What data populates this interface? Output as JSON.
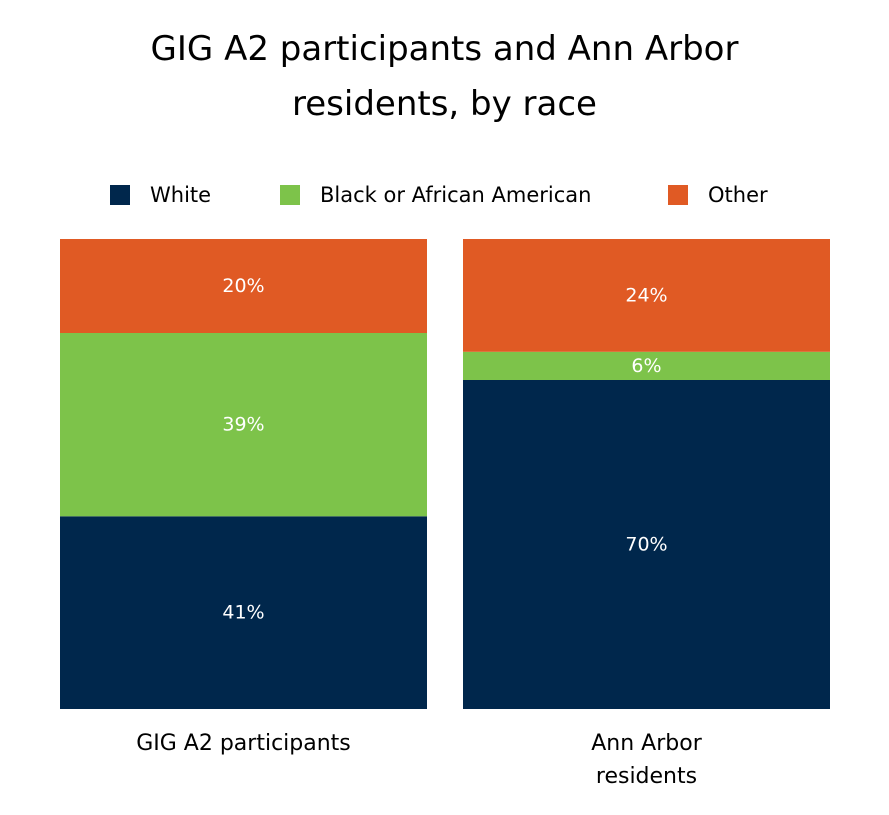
{
  "chart_data": {
    "type": "bar",
    "stacked": true,
    "title": "GIG A2 participants and Ann Arbor residents, by race",
    "categories": [
      "GIG A2 participants",
      "Ann Arbor residents"
    ],
    "series": [
      {
        "name": "White",
        "color": "#00274c",
        "values": [
          41,
          70
        ],
        "labels": [
          "41%",
          "70%"
        ]
      },
      {
        "name": "Black or African American",
        "color": "#7dc34a",
        "values": [
          39,
          6
        ],
        "labels": [
          "39%",
          "6%"
        ]
      },
      {
        "name": "Other",
        "color": "#e05a24",
        "values": [
          20,
          24
        ],
        "labels": [
          "20%",
          "24%"
        ]
      }
    ],
    "ylim": [
      0,
      100
    ],
    "grid": false,
    "legend_position": "top"
  }
}
